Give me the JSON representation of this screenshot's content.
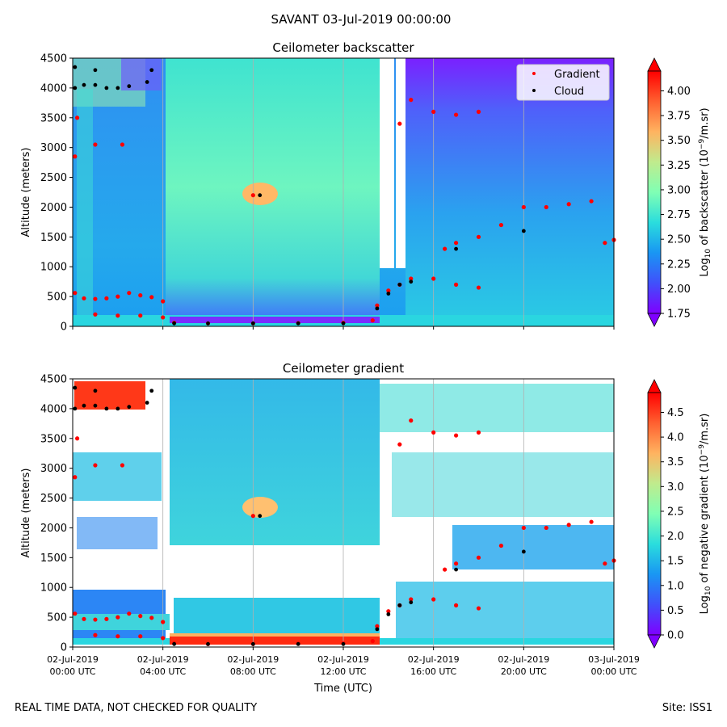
{
  "figure": {
    "suptitle": "SAVANT 03-Jul-2019 00:00:00",
    "footer_left": "REAL TIME DATA, NOT CHECKED FOR QUALITY",
    "footer_right": "Site: ISS1"
  },
  "colors": {
    "gradient_marker": "#ff0000",
    "cloud_marker": "#000000",
    "no_data": "#ffffff"
  },
  "chart_data": [
    {
      "type": "heatmap",
      "title": "Ceilometer backscatter",
      "xlabel": "",
      "ylabel": "Altitude (meters)",
      "ylim": [
        0,
        4500
      ],
      "yticks": [
        0,
        500,
        1000,
        1500,
        2000,
        2500,
        3000,
        3500,
        4000,
        4500
      ],
      "xlim_hours": [
        0,
        24
      ],
      "xticks_hours": [
        0,
        4,
        8,
        12,
        16,
        20,
        24
      ],
      "xtick_labels_visible": false,
      "grid": "vertical",
      "colormap": "rainbow",
      "colorbar": {
        "label": "Log10 of backscatter (10^-9/m.sr)",
        "range": [
          1.75,
          4.2
        ],
        "ticks": [
          "1.75",
          "2.00",
          "2.25",
          "2.50",
          "2.75",
          "3.00",
          "3.25",
          "3.50",
          "3.75",
          "4.00"
        ],
        "tick_values": [
          1.75,
          2.0,
          2.25,
          2.5,
          2.75,
          3.0,
          3.25,
          3.5,
          3.75,
          4.0
        ],
        "extend": "both"
      },
      "legend": {
        "placement": "top-right",
        "entries": [
          "Gradient",
          "Cloud"
        ]
      }
    },
    {
      "type": "heatmap",
      "title": "Ceilometer gradient",
      "xlabel": "Time (UTC)",
      "ylabel": "Altitude (meters)",
      "ylim": [
        0,
        4500
      ],
      "yticks": [
        0,
        500,
        1000,
        1500,
        2000,
        2500,
        3000,
        3500,
        4000,
        4500
      ],
      "xlim_hours": [
        0,
        24
      ],
      "xticks_hours": [
        0,
        4,
        8,
        12,
        16,
        20,
        24
      ],
      "xtick_labels": [
        [
          "02-Jul-2019",
          "00:00 UTC"
        ],
        [
          "02-Jul-2019",
          "04:00 UTC"
        ],
        [
          "02-Jul-2019",
          "08:00 UTC"
        ],
        [
          "02-Jul-2019",
          "12:00 UTC"
        ],
        [
          "02-Jul-2019",
          "16:00 UTC"
        ],
        [
          "02-Jul-2019",
          "20:00 UTC"
        ],
        [
          "03-Jul-2019",
          "00:00 UTC"
        ]
      ],
      "grid": "vertical",
      "colormap": "rainbow",
      "colorbar": {
        "label": "Log10 of negative gradient (10^-9/m.sr)",
        "range": [
          0.0,
          4.9
        ],
        "ticks": [
          "0.0",
          "0.5",
          "1.0",
          "1.5",
          "2.0",
          "2.5",
          "3.0",
          "3.5",
          "4.0",
          "4.5"
        ],
        "tick_values": [
          0.0,
          0.5,
          1.0,
          1.5,
          2.0,
          2.5,
          3.0,
          3.5,
          4.0,
          4.5
        ],
        "extend": "both"
      }
    }
  ],
  "series": {
    "gradient": [
      [
        0.1,
        560
      ],
      [
        0.5,
        470
      ],
      [
        1.0,
        460
      ],
      [
        1.5,
        470
      ],
      [
        2.0,
        500
      ],
      [
        2.5,
        560
      ],
      [
        3.0,
        520
      ],
      [
        3.5,
        490
      ],
      [
        4.0,
        420
      ],
      [
        0.2,
        3500
      ],
      [
        1.0,
        3050
      ],
      [
        2.2,
        3050
      ],
      [
        0.1,
        2850
      ],
      [
        1.0,
        200
      ],
      [
        2.0,
        180
      ],
      [
        3.0,
        180
      ],
      [
        4.0,
        150
      ],
      [
        4.5,
        60
      ],
      [
        6.0,
        50
      ],
      [
        8.0,
        50
      ],
      [
        10.0,
        55
      ],
      [
        12.0,
        60
      ],
      [
        13.3,
        100
      ],
      [
        8.0,
        2200
      ],
      [
        13.5,
        350
      ],
      [
        14.0,
        600
      ],
      [
        14.5,
        700
      ],
      [
        15.0,
        800
      ],
      [
        16.0,
        800
      ],
      [
        17.0,
        700
      ],
      [
        18.0,
        650
      ],
      [
        16.5,
        1300
      ],
      [
        17.0,
        1400
      ],
      [
        18.0,
        1500
      ],
      [
        19.0,
        1700
      ],
      [
        20.0,
        2000
      ],
      [
        21.0,
        2000
      ],
      [
        22.0,
        2050
      ],
      [
        23.0,
        2100
      ],
      [
        23.6,
        1400
      ],
      [
        24.0,
        1450
      ],
      [
        15.0,
        3800
      ],
      [
        16.0,
        3600
      ],
      [
        17.0,
        3550
      ],
      [
        18.0,
        3600
      ],
      [
        14.5,
        3400
      ]
    ],
    "cloud": [
      [
        0.1,
        4000
      ],
      [
        0.5,
        4050
      ],
      [
        1.0,
        4050
      ],
      [
        1.5,
        4000
      ],
      [
        2.0,
        4000
      ],
      [
        2.5,
        4030
      ],
      [
        3.3,
        4100
      ],
      [
        3.5,
        4300
      ],
      [
        0.1,
        4350
      ],
      [
        1.0,
        4300
      ],
      [
        4.5,
        50
      ],
      [
        6.0,
        50
      ],
      [
        8.0,
        50
      ],
      [
        10.0,
        50
      ],
      [
        12.0,
        50
      ],
      [
        8.3,
        2200
      ],
      [
        13.5,
        300
      ],
      [
        14.0,
        550
      ],
      [
        14.5,
        700
      ],
      [
        15.0,
        750
      ],
      [
        17.0,
        1300
      ],
      [
        20.0,
        1600
      ]
    ]
  }
}
